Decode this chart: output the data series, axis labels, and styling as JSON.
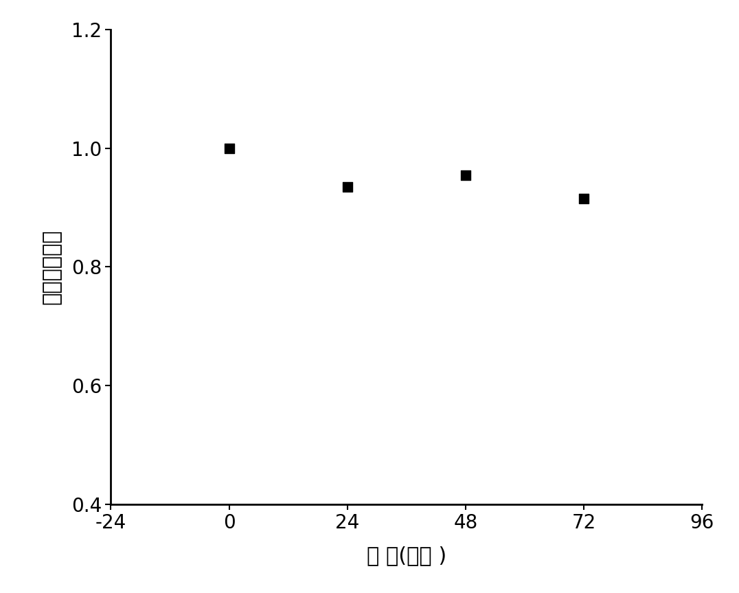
{
  "x": [
    0,
    24,
    48,
    72
  ],
  "y": [
    1.0,
    0.935,
    0.955,
    0.915
  ],
  "marker": "s",
  "marker_color": "#000000",
  "marker_size": 100,
  "xlim": [
    -24,
    96
  ],
  "ylim": [
    0.4,
    1.2
  ],
  "xticks": [
    -24,
    0,
    24,
    48,
    72,
    96
  ],
  "yticks": [
    0.4,
    0.6,
    0.8,
    1.0,
    1.2
  ],
  "xlabel": "时 间(小时 )",
  "ylabel": "相对荧光强度",
  "background_color": "#ffffff",
  "tick_fontsize": 20,
  "label_fontsize": 22,
  "figsize": [
    10.76,
    8.63
  ],
  "dpi": 100
}
